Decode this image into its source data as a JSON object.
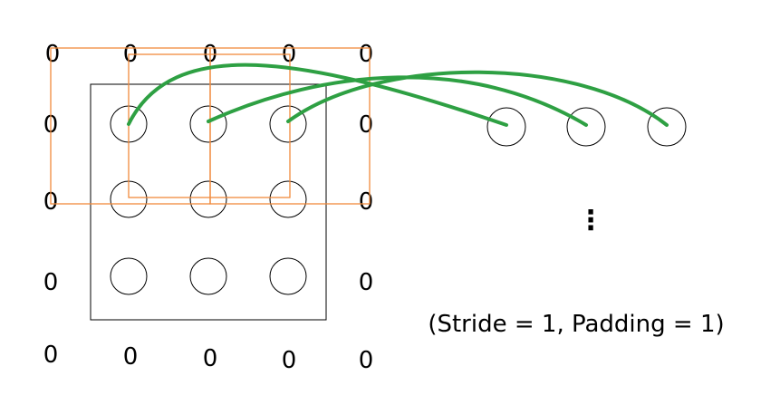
{
  "padding_value": "0",
  "caption": "(Stride = 1, Padding = 1)",
  "ellipsis": "⋮",
  "colors": {
    "line": "#000000",
    "kernel_window": "#f08a3c",
    "connection": "#2ea043",
    "background": "#ffffff"
  },
  "input_grid": {
    "rows": 3,
    "cols": 3,
    "padding": 1
  },
  "output_nodes_visible": 3,
  "kernel_windows_shown": 3,
  "stride": 1
}
